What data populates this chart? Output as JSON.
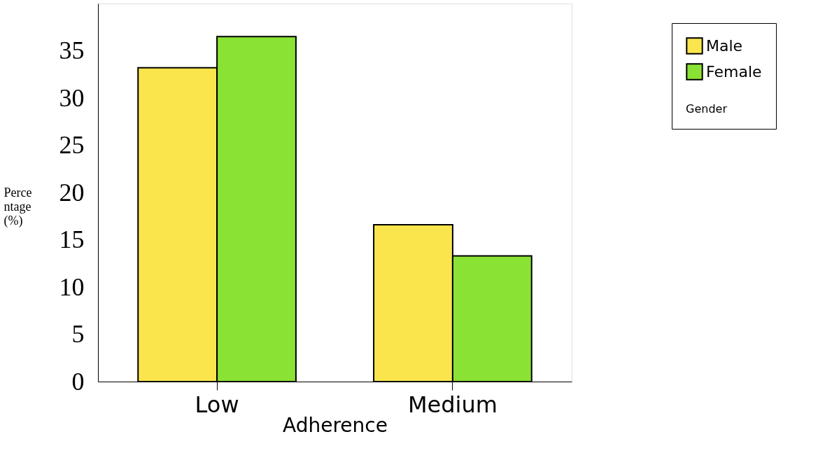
{
  "chart_data": {
    "type": "bar",
    "xlabel": "Adherence",
    "ylabel": "Percentage (%)",
    "legend_title": "Gender",
    "categories": [
      "Low",
      "Medium"
    ],
    "series": [
      {
        "name": "Male",
        "color": "#fbe54d",
        "values": [
          33.2,
          16.6
        ]
      },
      {
        "name": "Female",
        "color": "#8ae234",
        "values": [
          36.5,
          13.3
        ]
      }
    ],
    "ylim": [
      0,
      40
    ],
    "yticks": [
      0,
      5,
      10,
      15,
      20,
      25,
      30,
      35
    ],
    "grid": false,
    "legend": "top right"
  }
}
